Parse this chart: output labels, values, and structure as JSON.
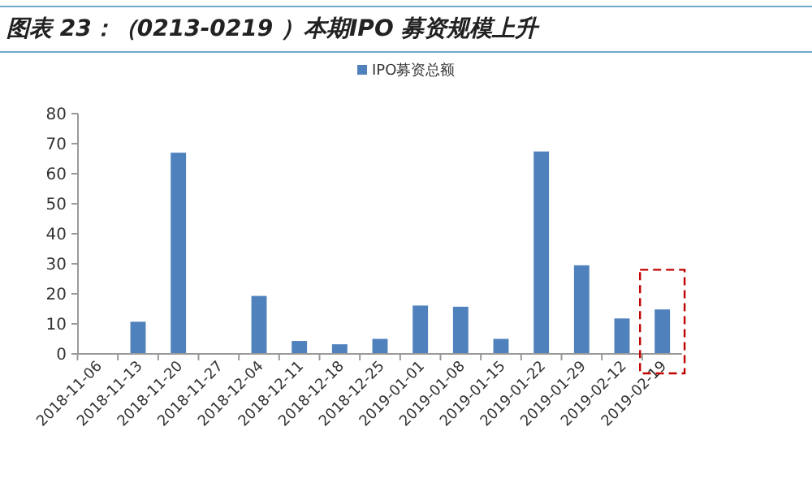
{
  "chart_data": {
    "type": "bar",
    "title": "图表 23：（0213-0219 ）本期IPO 募资规模上升",
    "categories": [
      "2018-11-06",
      "2018-11-13",
      "2018-11-20",
      "2018-11-27",
      "2018-12-04",
      "2018-12-11",
      "2018-12-18",
      "2018-12-25",
      "2019-01-01",
      "2019-01-08",
      "2019-01-15",
      "2019-01-22",
      "2019-01-29",
      "2019-02-12",
      "2019-02-19"
    ],
    "series": [
      {
        "name": "IPO募资总额",
        "color": "#4f81bd",
        "values": [
          0,
          10.7,
          67,
          0,
          19.3,
          4.3,
          3.2,
          5,
          16.1,
          15.7,
          5,
          67.4,
          29.5,
          11.8,
          14.8
        ]
      }
    ],
    "ylim": [
      0,
      80
    ],
    "yticks": [
      0,
      10,
      20,
      30,
      40,
      50,
      60,
      70,
      80
    ],
    "grid": false,
    "legend": "top"
  }
}
